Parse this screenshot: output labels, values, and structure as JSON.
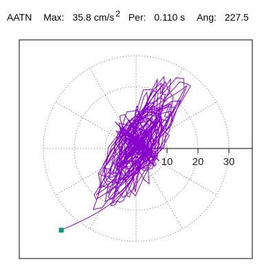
{
  "header": {
    "station": "AATN",
    "max_label": "Max:",
    "max_value": "35.8 cm/s",
    "max_exp": "2",
    "per_label": "Per:",
    "per_value": "0.110 s",
    "ang_label": "Ang:",
    "ang_value": "227.5"
  },
  "chart_data": {
    "type": "polar-particle-motion",
    "units": "cm/s2",
    "max_amplitude": 35.8,
    "period_s": 0.11,
    "angle_deg": 227.5,
    "radial_ticks": [
      10,
      20,
      30
    ],
    "radial_tick_labels": [
      "10",
      "20",
      "30"
    ],
    "radial_rings": [
      10,
      20,
      30
    ],
    "spokes_deg": [
      0,
      30,
      60,
      90,
      120,
      150,
      180,
      210,
      240,
      270,
      300,
      330
    ],
    "grid": "dotted",
    "trace_color": "#8800cc",
    "end_marker_color": "#009977",
    "end_marker": {
      "x": -24.2,
      "y": -26.4
    },
    "trace_major_axis_deg": 47.5,
    "trace_major_extent": 28,
    "trace_minor_extent": 13
  }
}
